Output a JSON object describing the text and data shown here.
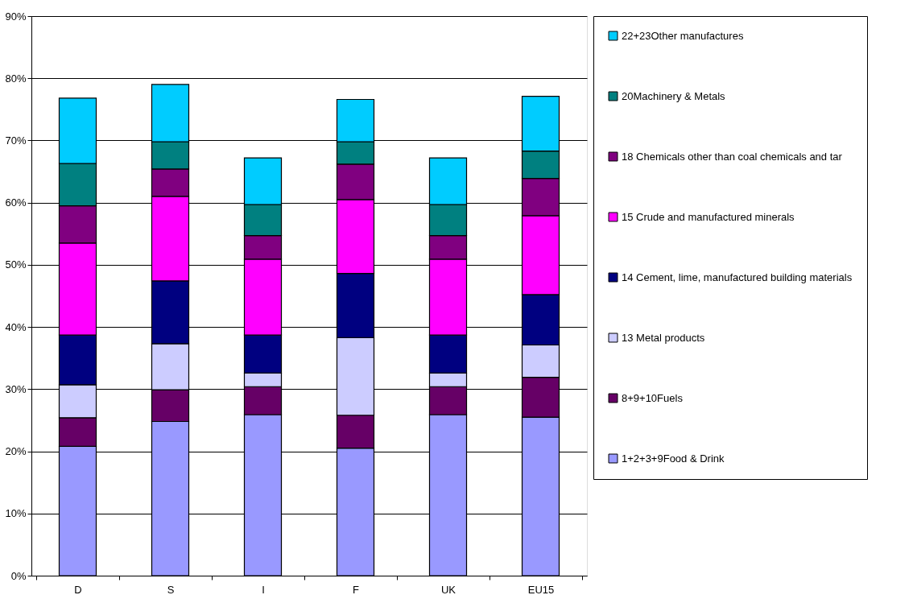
{
  "chart_data": {
    "type": "bar",
    "stacked": true,
    "categories": [
      "D",
      "S",
      "I",
      "F",
      "UK",
      "EU15"
    ],
    "series": [
      {
        "name": "1+2+3+9Food & Drink",
        "color": "#9999ff",
        "values": [
          20.8,
          24.8,
          25.9,
          20.5,
          25.9,
          25.5
        ]
      },
      {
        "name": "8+9+10Fuels",
        "color": "#660066",
        "values": [
          4.6,
          5.1,
          4.5,
          5.3,
          4.5,
          6.4
        ]
      },
      {
        "name": "13 Metal products",
        "color": "#ccccff",
        "values": [
          5.3,
          7.4,
          2.2,
          12.5,
          2.2,
          5.2
        ]
      },
      {
        "name": "14 Cement, lime, manufactured building materials",
        "color": "#000080",
        "values": [
          8.0,
          10.1,
          6.1,
          10.3,
          6.1,
          8.1
        ]
      },
      {
        "name": "15 Crude and manufactured minerals",
        "color": "#ff00ff",
        "values": [
          14.8,
          13.6,
          12.2,
          11.9,
          12.2,
          12.7
        ]
      },
      {
        "name": "18 Chemicals other than coal chemicals and tar",
        "color": "#800080",
        "values": [
          6.0,
          4.4,
          3.8,
          5.7,
          3.8,
          6.0
        ]
      },
      {
        "name": "20Machinery & Metals",
        "color": "#008080",
        "values": [
          6.8,
          4.4,
          5.0,
          3.6,
          5.0,
          4.4
        ]
      },
      {
        "name": "22+23Other manufactures",
        "color": "#00ccff",
        "values": [
          10.5,
          9.2,
          7.5,
          6.8,
          7.5,
          8.8
        ]
      }
    ],
    "ylim": [
      0,
      90
    ],
    "yticks": [
      {
        "value": 0,
        "label": "0%"
      },
      {
        "value": 10,
        "label": "10%"
      },
      {
        "value": 20,
        "label": "20%"
      },
      {
        "value": 30,
        "label": "30%"
      },
      {
        "value": 40,
        "label": "40%"
      },
      {
        "value": 50,
        "label": "50%"
      },
      {
        "value": 60,
        "label": "60%"
      },
      {
        "value": 70,
        "label": "70%"
      },
      {
        "value": 80,
        "label": "80%"
      },
      {
        "value": 90,
        "label": "90%"
      }
    ],
    "grid": "y",
    "legend": "right"
  }
}
